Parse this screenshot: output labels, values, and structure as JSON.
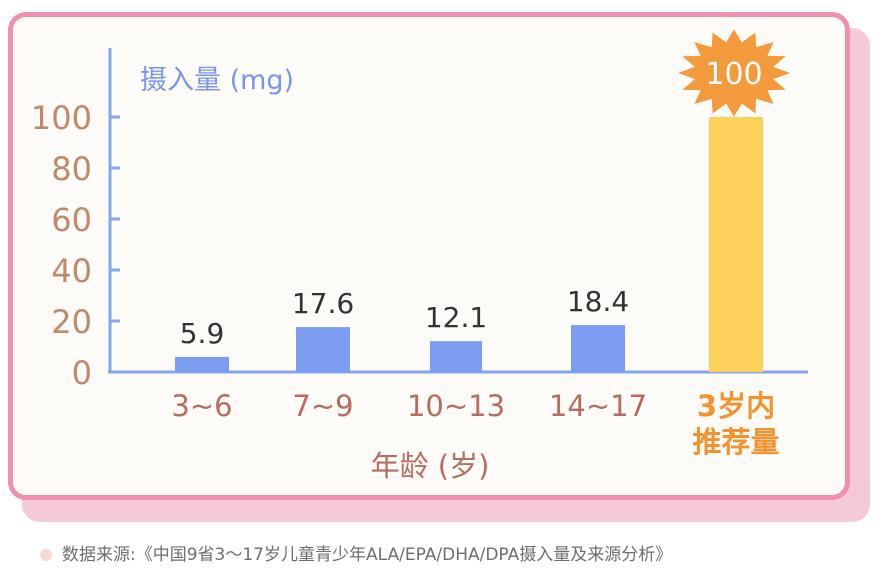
{
  "chart_data": {
    "type": "bar",
    "ylabel": "摄入量 (mg)",
    "xlabel": "年龄 (岁)",
    "ylim": [
      0,
      100
    ],
    "yticks": [
      0,
      20,
      40,
      60,
      80,
      100
    ],
    "categories": [
      "3~6",
      "7~9",
      "10~13",
      "14~17",
      "3岁内\n推荐量"
    ],
    "values": [
      5.9,
      17.6,
      12.1,
      18.4,
      100
    ],
    "value_labels": [
      "5.9",
      "17.6",
      "12.1",
      "18.4",
      "100"
    ],
    "highlight_index": 4,
    "grid": false
  },
  "colors": {
    "bar": "#7b9cf0",
    "highlight_bar": "#fbd15c",
    "burst": "#f39a3c",
    "axis": "#89a4f3",
    "tick_label": "#c08a6a",
    "category_label": "#b56d5f",
    "highlight_label": "#f2932f",
    "ylabel": "#7b95e9",
    "xlabel": "#b56d5f"
  },
  "source": {
    "text": "数据来源:《中国9省3～17岁儿童青少年ALA/EPA/DHA/DPA摄入量及来源分析》"
  }
}
